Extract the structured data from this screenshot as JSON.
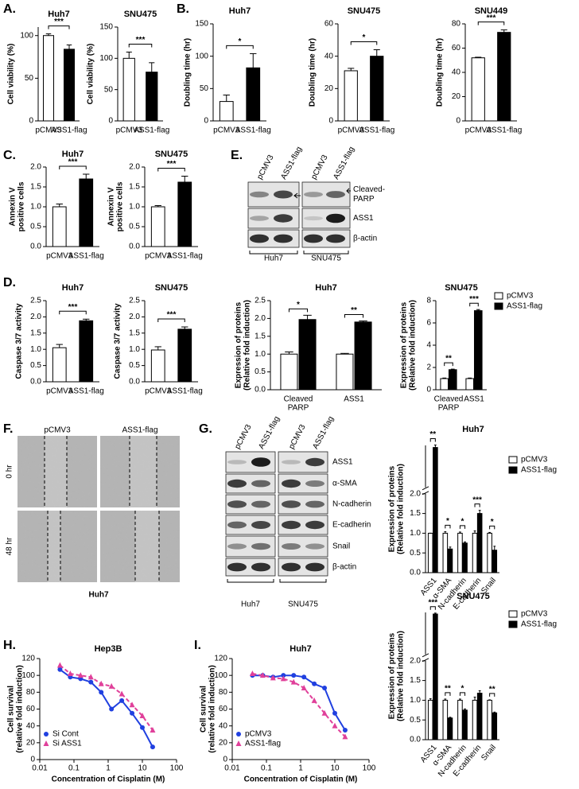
{
  "panel_labels": [
    "A.",
    "B.",
    "C.",
    "D.",
    "E.",
    "F.",
    "G.",
    "H.",
    "I."
  ],
  "western_e": {
    "lanes": [
      "pCMV3",
      "ASS1-flag",
      "pCMV3",
      "ASS1-flag"
    ],
    "rows": [
      [
        "Cleaved-",
        "PARP"
      ],
      "ASS1",
      "β-actin"
    ],
    "groups": [
      "Huh7",
      "SNU475"
    ]
  },
  "western_g": {
    "lanes": [
      "pCMV3",
      "ASS1-flag",
      "pCMV3",
      "ASS1-flag"
    ],
    "rows": [
      "ASS1",
      "α-SMA",
      "N-cadherin",
      "E-cadherin",
      "Snail",
      "β-actin"
    ],
    "groups": [
      "Huh7",
      "SNU475"
    ]
  },
  "scratch_f": {
    "columns": [
      "pCMV3",
      "ASS1-flag"
    ],
    "rows": [
      "0 hr",
      "48 hr"
    ],
    "caption": "Huh7"
  },
  "chart_data": [
    {
      "type": "bar",
      "title": "Huh7",
      "ylabel": [
        "Cell viability (%)"
      ],
      "categories": [
        "pCMV3",
        "ASS1-flag"
      ],
      "values": [
        100,
        84
      ],
      "errors": [
        2,
        5
      ],
      "colors": [
        "#ffffff",
        "#000000"
      ],
      "ylim": [
        0,
        110
      ],
      "yticks": [
        0,
        50,
        100
      ],
      "significance": "***"
    },
    {
      "type": "bar",
      "title": "SNU475",
      "ylabel": [
        "Cell viability (%)"
      ],
      "categories": [
        "pCMV3",
        "ASS1-flag"
      ],
      "values": [
        100,
        78
      ],
      "errors": [
        10,
        15
      ],
      "colors": [
        "#ffffff",
        "#000000"
      ],
      "ylim": [
        0,
        150
      ],
      "yticks": [
        0,
        50,
        100,
        150
      ],
      "significance": "***"
    },
    {
      "type": "bar",
      "title": "Huh7",
      "ylabel": [
        "Doubling time (hr)"
      ],
      "categories": [
        "pCMV3",
        "ASS1-flag"
      ],
      "values": [
        30,
        82
      ],
      "errors": [
        10,
        22
      ],
      "colors": [
        "#ffffff",
        "#000000"
      ],
      "ylim": [
        0,
        150
      ],
      "yticks": [
        0,
        50,
        100,
        150
      ],
      "significance": "*"
    },
    {
      "type": "bar",
      "title": "SNU475",
      "ylabel": [
        "Doubling time (hr)"
      ],
      "categories": [
        "pCMV3",
        "ASS1-flag"
      ],
      "values": [
        31,
        40
      ],
      "errors": [
        1.5,
        4
      ],
      "colors": [
        "#ffffff",
        "#000000"
      ],
      "ylim": [
        0,
        60
      ],
      "yticks": [
        0,
        20,
        40,
        60
      ],
      "significance": "*"
    },
    {
      "type": "bar",
      "title": "SNU449",
      "ylabel": [
        "Doubling time (hr)"
      ],
      "categories": [
        "pCMV3",
        "ASS1-flag"
      ],
      "values": [
        52,
        73
      ],
      "errors": [
        0.5,
        2
      ],
      "colors": [
        "#ffffff",
        "#000000"
      ],
      "ylim": [
        0,
        80
      ],
      "yticks": [
        0,
        20,
        40,
        60,
        80
      ],
      "significance": "***"
    },
    {
      "type": "bar",
      "title": "Huh7",
      "ylabel": [
        "Annexin V",
        "positive cells"
      ],
      "categories": [
        "pCMV3",
        "ASS1-flag"
      ],
      "values": [
        1.0,
        1.7
      ],
      "errors": [
        0.07,
        0.12
      ],
      "colors": [
        "#ffffff",
        "#000000"
      ],
      "ylim": [
        0,
        2
      ],
      "yticks": [
        {
          "value": 0,
          "label": "0.0"
        },
        0.5,
        {
          "value": 1,
          "label": "1.0"
        },
        1.5,
        {
          "value": 2,
          "label": "2.0"
        }
      ],
      "significance": "***"
    },
    {
      "type": "bar",
      "title": "SNU475",
      "ylabel": [
        "Annexin V",
        "positive cells"
      ],
      "categories": [
        "pCMV3",
        "ASS1-flag"
      ],
      "values": [
        1.0,
        1.62
      ],
      "errors": [
        0.03,
        0.15
      ],
      "colors": [
        "#ffffff",
        "#000000"
      ],
      "ylim": [
        0,
        2
      ],
      "yticks": [
        {
          "value": 0,
          "label": "0.0"
        },
        0.5,
        {
          "value": 1,
          "label": "1.0"
        },
        1.5,
        {
          "value": 2,
          "label": "2.0"
        }
      ],
      "significance": "***"
    },
    {
      "type": "bar",
      "title": "Huh7",
      "ylabel": [
        "Caspase 3/7 activity"
      ],
      "categories": [
        "pCMV3",
        "ASS1-flag"
      ],
      "values": [
        1.05,
        1.88
      ],
      "errors": [
        0.1,
        0.05
      ],
      "colors": [
        "#ffffff",
        "#000000"
      ],
      "ylim": [
        0,
        2.5
      ],
      "yticks": [
        {
          "value": 0,
          "label": "0.0"
        },
        0.5,
        {
          "value": 1,
          "label": "1.0"
        },
        1.5,
        {
          "value": 2,
          "label": "2.0"
        },
        2.5
      ],
      "significance": "***"
    },
    {
      "type": "bar",
      "title": "SNU475",
      "ylabel": [
        "Caspase 3/7 activity"
      ],
      "categories": [
        "pCMV3",
        "ASS1-flag"
      ],
      "values": [
        0.98,
        1.62
      ],
      "errors": [
        0.1,
        0.07
      ],
      "colors": [
        "#ffffff",
        "#000000"
      ],
      "ylim": [
        0,
        2.5
      ],
      "yticks": [
        {
          "value": 0,
          "label": "0.0"
        },
        0.5,
        {
          "value": 1,
          "label": "1.0"
        },
        1.5,
        {
          "value": 2,
          "label": "2.0"
        },
        2.5
      ],
      "significance": "***"
    },
    {
      "type": "bar",
      "title": "Huh7",
      "ylabel": [
        "Expression of proteins",
        "(Relative fold induction)"
      ],
      "categories": [
        [
          "Cleaved",
          "PARP"
        ],
        "ASS1"
      ],
      "series": [
        {
          "name": "pCMV3",
          "color": "#ffffff",
          "values": [
            1.0,
            1.0
          ],
          "errors": [
            0.06,
            0.02
          ]
        },
        {
          "name": "ASS1-flag",
          "color": "#000000",
          "values": [
            1.97,
            1.9
          ],
          "errors": [
            0.12,
            0.03
          ]
        }
      ],
      "ylim": [
        0,
        2.5
      ],
      "yticks": [
        {
          "value": 0,
          "label": "0.0"
        },
        0.5,
        {
          "value": 1,
          "label": "1.0"
        },
        1.5,
        {
          "value": 2,
          "label": "2.0"
        },
        2.5
      ],
      "significance": [
        "*",
        "**"
      ]
    },
    {
      "type": "bar",
      "title": "SNU475",
      "ylabel": [
        "Expression of proteins",
        "(Relative fold induction)"
      ],
      "categories": [
        [
          "Cleaved",
          "PARP"
        ],
        "ASS1"
      ],
      "series": [
        {
          "name": "pCMV3",
          "color": "#ffffff",
          "values": [
            1.0,
            1.0
          ],
          "errors": [
            0.05,
            0.05
          ]
        },
        {
          "name": "ASS1-flag",
          "color": "#000000",
          "values": [
            1.8,
            7.1
          ],
          "errors": [
            0.05,
            0.1
          ]
        }
      ],
      "ylim": [
        0,
        8
      ],
      "yticks": [
        0,
        2,
        4,
        6,
        8
      ],
      "significance": [
        "**",
        "***"
      ],
      "legend": "right"
    },
    {
      "type": "bar",
      "title": "Huh7",
      "ylabel": [
        "Expression of proteins",
        "(Relative fold induction)"
      ],
      "categories": [
        "ASS1",
        "α-SMA",
        "N-cadherin",
        "E-cadherin",
        "Snail"
      ],
      "series": [
        {
          "name": "pCMV3",
          "color": "#ffffff",
          "values": [
            1,
            1,
            1,
            1,
            1
          ],
          "errors": [
            0,
            0.04,
            0.03,
            0.06,
            0.02
          ]
        },
        {
          "name": "ASS1-flag",
          "color": "#000000",
          "values": [
            11.5,
            0.6,
            0.75,
            1.5,
            0.57
          ],
          "errors": [
            0.6,
            0.05,
            0.03,
            0.08,
            0.1
          ]
        }
      ],
      "ylim": [
        0,
        12
      ],
      "ybreak": 2,
      "yticks": [
        {
          "value": 0,
          "label": "0.0"
        },
        0.5,
        {
          "value": 1,
          "label": "1.0"
        },
        1.5,
        {
          "value": 2,
          "label": "2.0"
        }
      ],
      "significance": [
        "**",
        "*",
        "*",
        "***",
        "*"
      ],
      "legend": "right"
    },
    {
      "type": "bar",
      "title": "SNU475",
      "ylabel": [
        "Expression of proteins",
        "(Relative fold induction)"
      ],
      "categories": [
        "ASS1",
        "α-SMA",
        "N-cadherin",
        "E-cadherin",
        "Snail"
      ],
      "series": [
        {
          "name": "pCMV3",
          "color": "#ffffff",
          "values": [
            1,
            1,
            1,
            1,
            1
          ],
          "errors": [
            0.04,
            0.03,
            0.03,
            0.08,
            0.01
          ]
        },
        {
          "name": "ASS1-flag",
          "color": "#000000",
          "values": [
            14.5,
            0.55,
            0.75,
            1.18,
            0.68
          ],
          "errors": [
            0.3,
            0.02,
            0.03,
            0.06,
            0.02
          ]
        }
      ],
      "ylim": [
        0,
        15
      ],
      "ybreak": 2,
      "yticks": [
        {
          "value": 0,
          "label": "0.0"
        },
        0.5,
        {
          "value": 1,
          "label": "1.0"
        },
        1.5,
        {
          "value": 2,
          "label": "2.0"
        }
      ],
      "significance": [
        "***",
        "**",
        "*",
        null,
        "**"
      ],
      "legend": "right"
    },
    {
      "type": "scatter",
      "title": "Hep3B",
      "xlabel": "Concentration of Cisplatin (M)",
      "ylabel": [
        "Cell survival",
        "(relative fold induction)"
      ],
      "xscale": "log",
      "xlim": [
        0.01,
        100
      ],
      "xticks": [
        0.01,
        0.1,
        1,
        10,
        100
      ],
      "ylim": [
        0,
        120
      ],
      "yticks": [
        0,
        20,
        40,
        60,
        80,
        100,
        120
      ],
      "legend": "lower left",
      "series": [
        {
          "name": "Si Cont",
          "color": "#2040e0",
          "marker": "circle",
          "line": "solid",
          "x": [
            0.039,
            0.078,
            0.156,
            0.3125,
            0.625,
            1.25,
            2.5,
            5,
            10,
            20
          ],
          "values": [
            107,
            98,
            96,
            92,
            80,
            60,
            70,
            55,
            38,
            15
          ]
        },
        {
          "name": "Si ASS1",
          "color": "#e0409a",
          "marker": "triangle",
          "line": "dashed",
          "x": [
            0.039,
            0.078,
            0.156,
            0.3125,
            0.625,
            1.25,
            2.5,
            5,
            10,
            20
          ],
          "values": [
            112,
            102,
            100,
            98,
            90,
            87,
            78,
            65,
            52,
            35
          ]
        }
      ]
    },
    {
      "type": "scatter",
      "title": "Huh7",
      "xlabel": "Concentration of Cisplatin (M)",
      "ylabel": [
        "Cell survival",
        "(relative fold induction)"
      ],
      "xscale": "log",
      "xlim": [
        0.01,
        100
      ],
      "xticks": [
        0.01,
        0.1,
        1,
        10,
        100
      ],
      "ylim": [
        0,
        120
      ],
      "yticks": [
        0,
        20,
        40,
        60,
        80,
        100,
        120
      ],
      "legend": "lower left",
      "series": [
        {
          "name": "pCMV3",
          "color": "#2040e0",
          "marker": "circle",
          "line": "solid",
          "x": [
            0.039,
            0.078,
            0.156,
            0.3125,
            0.625,
            1.25,
            2.5,
            5,
            10,
            20
          ],
          "values": [
            100,
            100,
            98,
            100,
            100,
            98,
            90,
            85,
            55,
            35
          ]
        },
        {
          "name": "ASS1-flag",
          "color": "#e0409a",
          "marker": "triangle",
          "line": "dashed",
          "x": [
            0.039,
            0.078,
            0.156,
            0.3125,
            0.625,
            1.25,
            2.5,
            5,
            10,
            20
          ],
          "values": [
            102,
            100,
            97,
            96,
            92,
            85,
            70,
            55,
            40,
            27
          ]
        }
      ]
    }
  ]
}
